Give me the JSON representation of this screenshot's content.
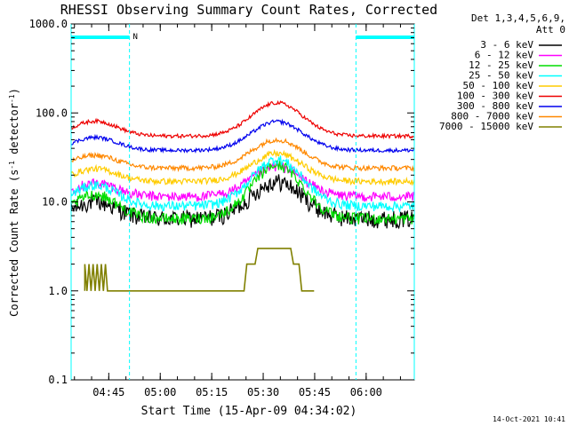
{
  "chart_data": {
    "type": "line",
    "title": "RHESSI Observing Summary Count Rates, Corrected",
    "xlabel": "Start Time (15-Apr-09 04:34:02)",
    "ylabel": "Corrected Count Rate (s",
    "ylabel_sup1": "-1",
    "ylabel_mid": " detector",
    "ylabel_sup2": "-1",
    "ylabel_end": ")",
    "xlim_minutes": [
      0,
      100
    ],
    "x_ticks": [
      {
        "label": "04:45",
        "min": 10.97
      },
      {
        "label": "05:00",
        "min": 25.97
      },
      {
        "label": "05:15",
        "min": 40.97
      },
      {
        "label": "05:30",
        "min": 55.97
      },
      {
        "label": "05:45",
        "min": 70.97
      },
      {
        "label": "06:00",
        "min": 85.97
      }
    ],
    "y_scale": "log",
    "ylim": [
      0.1,
      1000
    ],
    "y_ticks": [
      {
        "label": "1000.0",
        "value": 1000
      },
      {
        "label": "100.0",
        "value": 100
      },
      {
        "label": "10.0",
        "value": 10
      },
      {
        "label": "1.0",
        "value": 1
      },
      {
        "label": "0.1",
        "value": 0.1
      }
    ],
    "legend_header": [
      "Det 1,3,4,5,6,9,",
      "Att 0"
    ],
    "legend_placement": "top-right outside",
    "series": [
      {
        "name": "3 - 6 keV",
        "color": "#000000",
        "min": 7.5,
        "max": 17,
        "valley": 6.5,
        "noise": 0.14
      },
      {
        "name": "6 - 12 keV",
        "color": "#ff00ff",
        "min": 11.5,
        "max": 25,
        "valley": 11.5,
        "noise": 0.08
      },
      {
        "name": "12 - 25 keV",
        "color": "#00dd00",
        "min": 8,
        "max": 26,
        "valley": 6.5,
        "noise": 0.09
      },
      {
        "name": "25 - 50 keV",
        "color": "#00ffff",
        "min": 11,
        "max": 30,
        "valley": 9,
        "noise": 0.08
      },
      {
        "name": "50 - 100 keV",
        "color": "#ffcc00",
        "min": 17,
        "max": 35,
        "valley": 17,
        "noise": 0.05
      },
      {
        "name": "100 - 300 keV",
        "color": "#ee0000",
        "min": 55,
        "max": 130,
        "valley": 55,
        "noise": 0.03
      },
      {
        "name": "300 - 800 keV",
        "color": "#0000ee",
        "min": 38,
        "max": 80,
        "valley": 38,
        "noise": 0.03
      },
      {
        "name": "800 - 7000 keV",
        "color": "#ff8800",
        "min": 24,
        "max": 50,
        "valley": 24,
        "noise": 0.04
      },
      {
        "name": "7000 - 15000 keV",
        "color": "#808000",
        "min": 1,
        "max": 3,
        "valley": 1,
        "noise": 0
      }
    ],
    "data_windows_minutes": [
      [
        0,
        17
      ],
      [
        83,
        100
      ]
    ],
    "attenuator_bars": [
      {
        "label": "",
        "from": 0,
        "to": 17
      },
      {
        "label": "",
        "from": 83,
        "to": 100
      }
    ],
    "annotation": "N",
    "annotation_min": 18
  },
  "footer": {
    "timestamp": "14-Oct-2021 10:41"
  }
}
